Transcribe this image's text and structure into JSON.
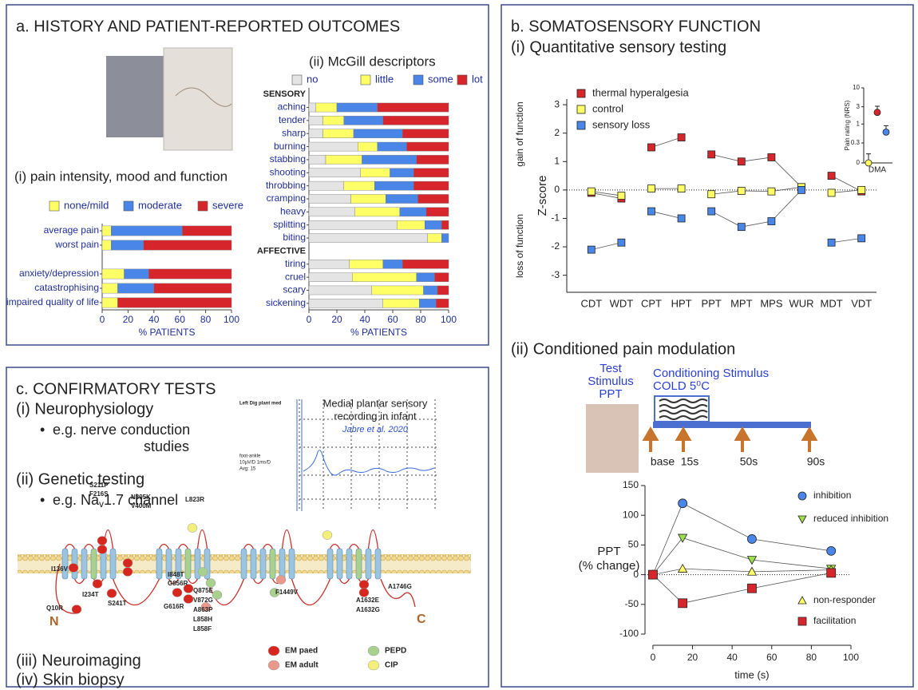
{
  "panel_a": {
    "title": "a. HISTORY AND PATIENT-REPORTED OUTCOMES"
  },
  "panel_b": {
    "title": "b. SOMATOSENSORY FUNCTION",
    "subtitle_i": "(i) Quantitative sensory testing",
    "subtitle_ii": "(ii) Conditioned pain modulation",
    "cpm_diagram": {
      "test_stimulus": [
        "Test",
        "Stimulus",
        "PPT"
      ],
      "conditioning_stimulus": [
        "Conditioning Stimulus",
        "COLD 5⁰C"
      ],
      "timepoints": [
        "base",
        "15s",
        "50s",
        "90s"
      ]
    }
  },
  "panel_c": {
    "title": "c. CONFIRMATORY TESTS",
    "items": [
      "(i) Neurophysiology",
      "(ii) Genetic testing",
      "(iii) Neuroimaging",
      "(iv) Skin biopsy"
    ],
    "bullet_i": [
      "e.g. nerve conduction",
      "studies"
    ],
    "bullet_ii": {
      "before": "e.g. Na",
      "subscript": "v",
      "after": "1.7 channel"
    },
    "recording": {
      "title": [
        "Medial plantar sensory",
        "recording in infant"
      ],
      "citation": "Jabre et al. 2020",
      "trace_label": "Left Dig plant med",
      "settings": [
        "foot-ankle",
        "10µV/D 1ms/D",
        "Avg: 15"
      ]
    },
    "channel": {
      "mutations": [
        "Q10R",
        "I136V",
        "S211P",
        "F216S",
        "I234T",
        "S241T",
        "N395K",
        "V400M",
        "G616R",
        "L823R",
        "I848T",
        "G856R",
        "Q875E",
        "V872G",
        "A863P",
        "L858H",
        "L858F",
        "F1449V",
        "A1746G",
        "A1632E",
        "A1632G"
      ],
      "termini": [
        "N",
        "C"
      ],
      "legend": [
        "EM paed",
        "EM adult",
        "PEPD",
        "CIP"
      ]
    }
  },
  "chart_data": [
    {
      "type": "hbar_stacked",
      "title": "(i) pain intensity, mood and function",
      "categories": [
        "average pain",
        "worst pain",
        null,
        "anxiety/depression",
        "catastrophising",
        "impaired quality of life"
      ],
      "series": [
        {
          "name": "none/mild",
          "color": "#ffff66",
          "values": [
            7,
            7,
            null,
            17,
            12,
            12
          ]
        },
        {
          "name": "moderate",
          "color": "#4a86e8",
          "values": [
            55,
            25,
            null,
            19,
            28,
            0
          ]
        },
        {
          "name": "severe",
          "color": "#d7262b",
          "values": [
            38,
            68,
            null,
            64,
            60,
            88
          ]
        }
      ],
      "xlim": [
        0,
        100
      ],
      "xticks": [
        0,
        20,
        40,
        60,
        80,
        100
      ],
      "xlabel": "% PATIENTS",
      "legend": "top"
    },
    {
      "type": "hbar_stacked",
      "title": "(ii) McGill descriptors",
      "categories": [
        "SENSORY",
        "aching",
        "tender",
        "sharp",
        "burning",
        "stabbing",
        "shooting",
        "throbbing",
        "cramping",
        "heavy",
        "splitting",
        "biting",
        "AFFECTIVE",
        "tiring",
        "cruel",
        "scary",
        "sickening"
      ],
      "series": [
        {
          "name": "no",
          "color": "#e4e4e4",
          "values": [
            null,
            5,
            10,
            10,
            35,
            12,
            37,
            25,
            30,
            33,
            63,
            85,
            null,
            29,
            31,
            45,
            53
          ]
        },
        {
          "name": "little",
          "color": "#ffff66",
          "values": [
            null,
            15,
            15,
            22,
            14,
            26,
            21,
            22,
            25,
            32,
            20,
            10,
            null,
            24,
            46,
            37,
            26
          ]
        },
        {
          "name": "some",
          "color": "#4a86e8",
          "values": [
            null,
            29,
            28,
            35,
            21,
            39,
            17,
            28,
            23,
            19,
            12,
            5,
            null,
            14,
            13,
            10,
            12
          ]
        },
        {
          "name": "lot",
          "color": "#d7262b",
          "values": [
            null,
            51,
            47,
            33,
            30,
            23,
            25,
            25,
            22,
            16,
            5,
            0,
            null,
            33,
            10,
            8,
            9
          ]
        }
      ],
      "xlim": [
        0,
        100
      ],
      "xticks": [
        0,
        20,
        40,
        60,
        80,
        100
      ],
      "xlabel": "% PATIENTS",
      "legend": "top"
    },
    {
      "type": "line",
      "categories": [
        "CDT",
        "WDT",
        "CPT",
        "HPT",
        "PPT",
        "MPT",
        "MPS",
        "WUR",
        "MDT",
        "VDT"
      ],
      "series": [
        {
          "name": "thermal hyperalgesia",
          "color": "#d7262b",
          "values": [
            -0.1,
            -0.3,
            1.5,
            1.85,
            1.25,
            1.0,
            1.15,
            0.1,
            0.5,
            -0.05
          ]
        },
        {
          "name": "control",
          "color": "#ffff66",
          "values": [
            -0.05,
            -0.2,
            0.05,
            0.05,
            -0.15,
            -0.03,
            -0.05,
            0.1,
            -0.1,
            0.0
          ]
        },
        {
          "name": "sensory loss",
          "color": "#4a86e8",
          "values": [
            -2.1,
            -1.85,
            -0.75,
            -1.0,
            -0.75,
            -1.3,
            -1.1,
            0.0,
            -1.85,
            -1.7
          ]
        }
      ],
      "segments": [
        2,
        2,
        4,
        2
      ],
      "ylim": [
        -3.6,
        3.2
      ],
      "yticks": [
        -3,
        -2,
        -1,
        0,
        1,
        2,
        3
      ],
      "ylabel": "Z-score",
      "annotations": [
        "gain of function",
        "loss of function"
      ],
      "zero_line": "dotted",
      "legend": "top-left"
    },
    {
      "type": "dot_errorbar",
      "categories": [
        "DMA"
      ],
      "series": [
        {
          "color": "#ffff66",
          "values": [
            0
          ],
          "errors": [
            0.15
          ]
        },
        {
          "color": "#d7262b",
          "values": [
            2.1
          ],
          "errors": [
            1.0
          ]
        },
        {
          "color": "#4a86e8",
          "values": [
            0.6
          ],
          "errors": [
            0.3
          ]
        }
      ],
      "ylim": [
        0,
        10
      ],
      "yticks": [
        0,
        0.3,
        1,
        3,
        10
      ],
      "yscale": "log",
      "ylabel": "Pain rating (NRS)"
    },
    {
      "type": "scatter_line",
      "x": [
        0,
        15,
        50,
        90
      ],
      "series": [
        {
          "name": "inhibition",
          "color": "#4a86e8",
          "marker": "circle",
          "values": [
            0,
            120,
            60,
            40
          ]
        },
        {
          "name": "reduced inhibition",
          "color": "#9be14a",
          "marker": "triangle-down",
          "values": [
            0,
            62,
            25,
            10
          ]
        },
        {
          "name": "non-responder",
          "color": "#ffff66",
          "marker": "triangle-up",
          "values": [
            0,
            10,
            5,
            8
          ]
        },
        {
          "name": "facilitation",
          "color": "#d7262b",
          "marker": "square",
          "values": [
            0,
            -48,
            -23,
            3
          ]
        }
      ],
      "xlim": [
        -4,
        100
      ],
      "xticks": [
        0,
        20,
        40,
        60,
        80,
        100
      ],
      "ylim": [
        -100,
        150
      ],
      "yticks": [
        -100,
        -50,
        0,
        50,
        100,
        150
      ],
      "xlabel": "time (s)",
      "ylabel": [
        "PPT",
        "(% change)"
      ],
      "zero_line": "dotted",
      "legend": "right"
    }
  ]
}
